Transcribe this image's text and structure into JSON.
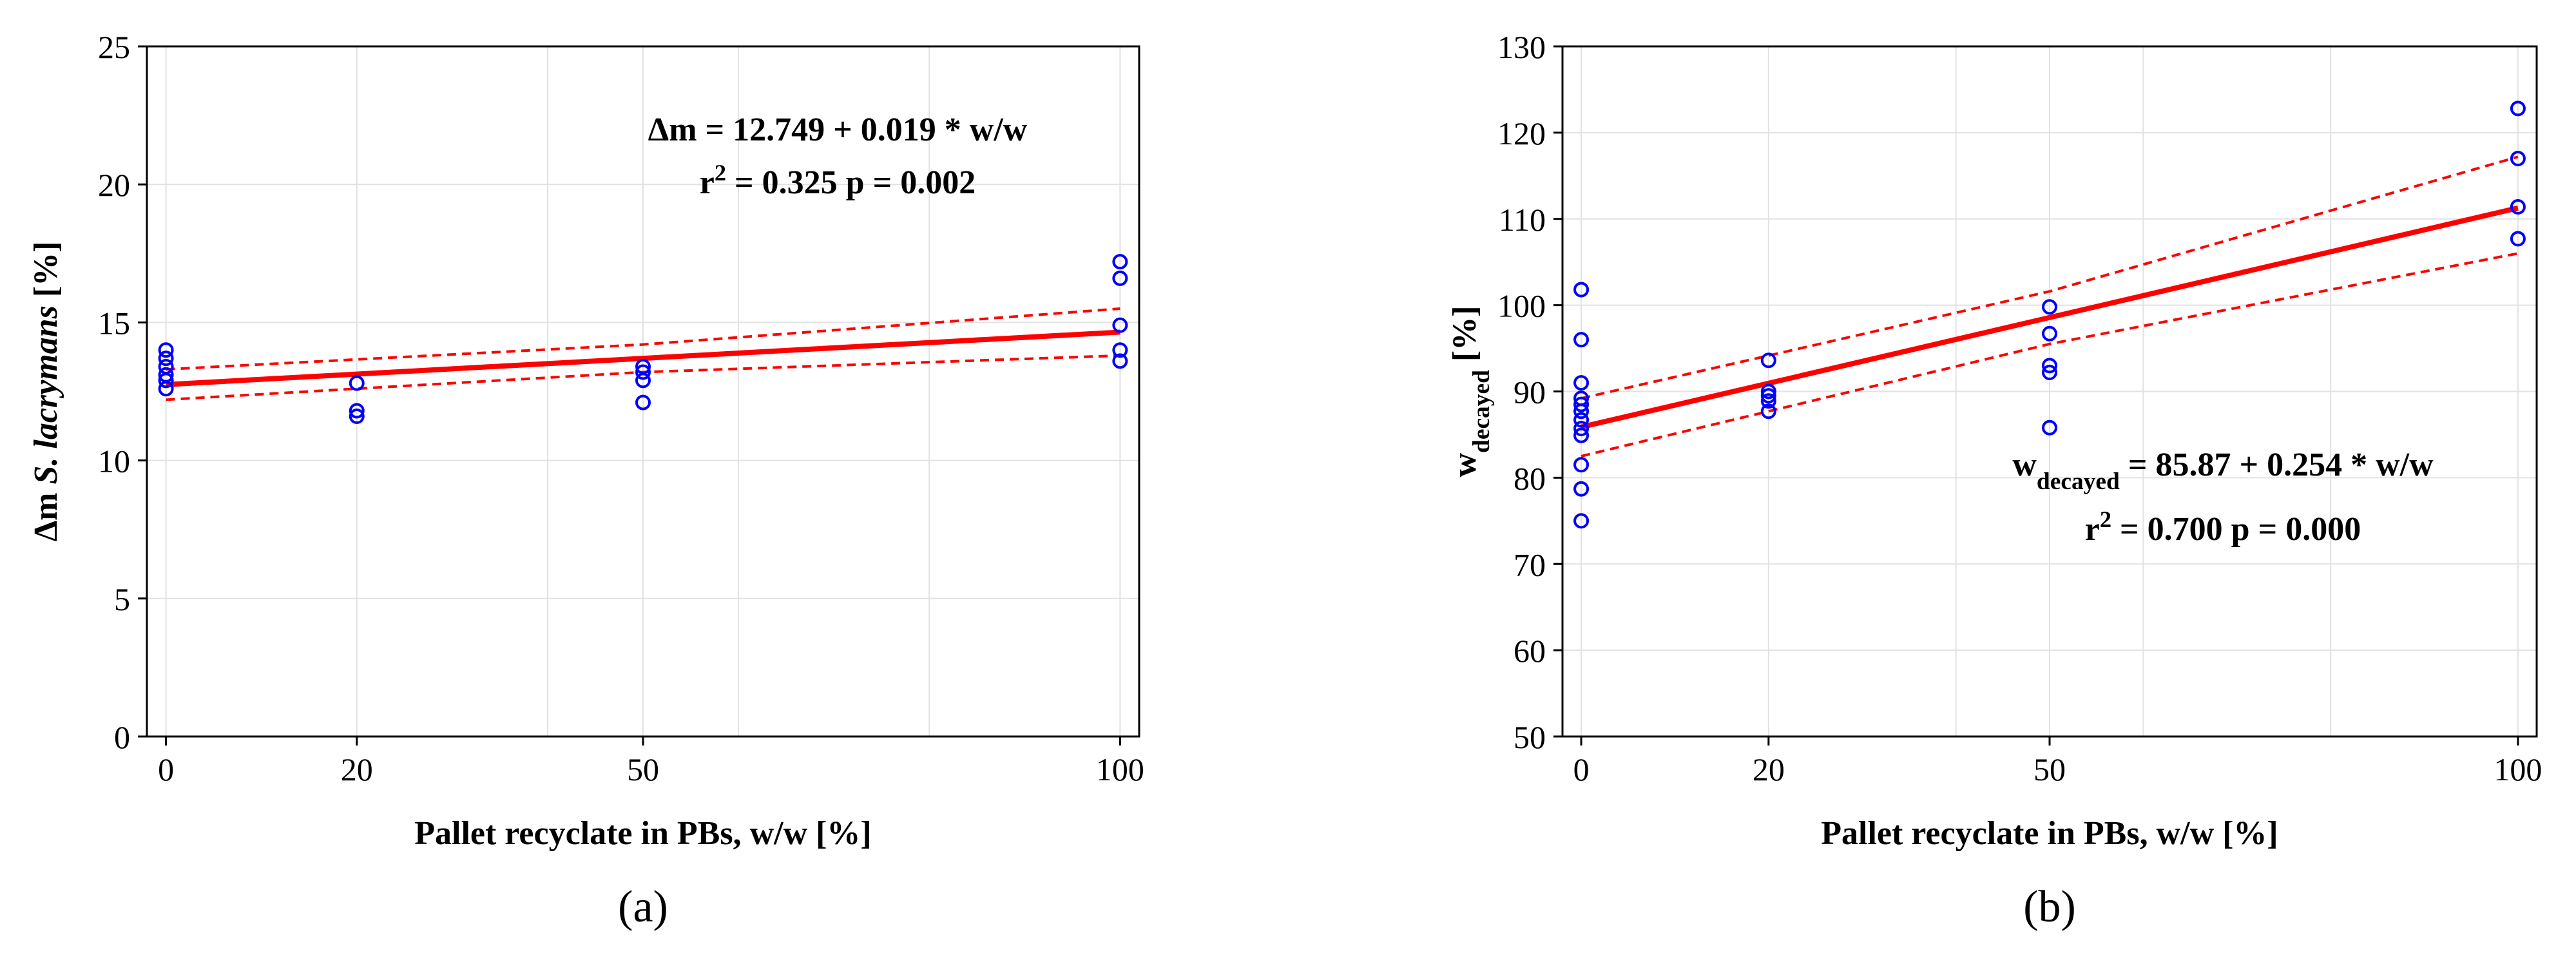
{
  "chart_data": [
    {
      "type": "scatter",
      "panel_label": "(a)",
      "xlabel": "Pallet recyclate in PBs, w/w  [%]",
      "ylabel_parts": [
        "Δm ",
        "S. lacrymans",
        " [%]"
      ],
      "xticks": [
        0,
        20,
        50,
        100
      ],
      "yticks": [
        0,
        5,
        10,
        15,
        20,
        25
      ],
      "xlim": [
        -2,
        102
      ],
      "ylim": [
        0,
        25
      ],
      "minor_x_grid": [
        40,
        60,
        80
      ],
      "grid": true,
      "series": [
        {
          "name": "observations",
          "color": "#0000ff",
          "points": [
            [
              0,
              14.0
            ],
            [
              0,
              13.7
            ],
            [
              0,
              13.4
            ],
            [
              0,
              13.1
            ],
            [
              0,
              12.9
            ],
            [
              0,
              12.6
            ],
            [
              20,
              12.8
            ],
            [
              20,
              11.8
            ],
            [
              20,
              11.6
            ],
            [
              50,
              13.4
            ],
            [
              50,
              13.2
            ],
            [
              50,
              12.9
            ],
            [
              50,
              12.1
            ],
            [
              100,
              17.2
            ],
            [
              100,
              16.6
            ],
            [
              100,
              14.9
            ],
            [
              100,
              14.0
            ],
            [
              100,
              13.6
            ]
          ]
        }
      ],
      "fit": {
        "intercept": 12.749,
        "slope": 0.019,
        "color": "#ff0000"
      },
      "confidence_band": {
        "lower": [
          [
            0,
            12.2
          ],
          [
            50,
            13.2
          ],
          [
            100,
            13.8
          ]
        ],
        "upper": [
          [
            0,
            13.3
          ],
          [
            50,
            14.2
          ],
          [
            100,
            15.5
          ]
        ]
      },
      "annotation_equation_parts": [
        {
          "t": "Δm = 12.749 + 0.019 * w/w"
        }
      ],
      "annotation_stats_parts": [
        {
          "t": "r"
        },
        {
          "t": "2",
          "sup": true
        },
        {
          "t": " = 0.325    p = 0.002"
        }
      ]
    },
    {
      "type": "scatter",
      "panel_label": "(b)",
      "xlabel": "Pallet recyclate in PBs, w/w  [%]",
      "ylabel_parts": [
        "w",
        "decayed",
        " [%]"
      ],
      "xticks": [
        0,
        20,
        50,
        100
      ],
      "yticks": [
        50,
        60,
        70,
        80,
        90,
        100,
        110,
        120,
        130
      ],
      "xlim": [
        -2,
        102
      ],
      "ylim": [
        50,
        130
      ],
      "minor_x_grid": [
        40,
        60,
        80
      ],
      "grid": true,
      "series": [
        {
          "name": "observations",
          "color": "#0000ff",
          "points": [
            [
              0,
              101.8
            ],
            [
              0,
              96.0
            ],
            [
              0,
              91.0
            ],
            [
              0,
              89.2
            ],
            [
              0,
              88.5
            ],
            [
              0,
              87.7
            ],
            [
              0,
              86.7
            ],
            [
              0,
              85.7
            ],
            [
              0,
              84.9
            ],
            [
              0,
              81.5
            ],
            [
              0,
              78.7
            ],
            [
              0,
              75.0
            ],
            [
              20,
              93.6
            ],
            [
              20,
              90.0
            ],
            [
              20,
              89.5
            ],
            [
              20,
              88.9
            ],
            [
              20,
              87.7
            ],
            [
              50,
              99.8
            ],
            [
              50,
              96.7
            ],
            [
              50,
              93.0
            ],
            [
              50,
              92.2
            ],
            [
              50,
              85.8
            ],
            [
              100,
              122.8
            ],
            [
              100,
              117.0
            ],
            [
              100,
              111.4
            ],
            [
              100,
              107.7
            ]
          ]
        }
      ],
      "fit": {
        "intercept": 85.87,
        "slope": 0.254,
        "color": "#ff0000"
      },
      "confidence_band": {
        "lower": [
          [
            0,
            82.5
          ],
          [
            50,
            95.5
          ],
          [
            100,
            106.0
          ]
        ],
        "upper": [
          [
            0,
            89.2
          ],
          [
            50,
            101.6
          ],
          [
            100,
            117.2
          ]
        ]
      },
      "annotation_equation_parts": [
        {
          "t": "w"
        },
        {
          "t": "decayed",
          "sub": true
        },
        {
          "t": " = 85.87 + 0.254 * w/w"
        }
      ],
      "annotation_stats_parts": [
        {
          "t": "r"
        },
        {
          "t": "2",
          "sup": true
        },
        {
          "t": " = 0.700    p = 0.000"
        }
      ]
    }
  ]
}
